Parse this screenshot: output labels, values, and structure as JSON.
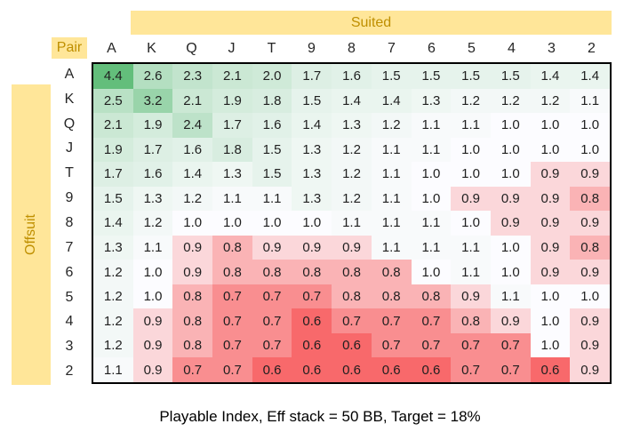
{
  "labels": {
    "suited": "Suited",
    "offsuit": "Offsuit",
    "pair": "Pair"
  },
  "caption": "Playable Index, Eff stack = 50 BB, Target = 18%",
  "colors": {
    "accent_yellow": "#FFE699",
    "gold_text": "#BF8F00",
    "table_border": "#000000"
  },
  "chart_data": {
    "type": "heatmap",
    "title": "Playable Index, Eff stack = 50 BB, Target = 18%",
    "top_group_label": "Suited",
    "left_group_label": "Offsuit",
    "diagonal_label": "Pair",
    "categories": [
      "A",
      "K",
      "Q",
      "J",
      "T",
      "9",
      "8",
      "7",
      "6",
      "5",
      "4",
      "3",
      "2"
    ],
    "rows": [
      {
        "label": "A",
        "values": [
          4.4,
          2.6,
          2.3,
          2.1,
          2.0,
          1.7,
          1.6,
          1.5,
          1.5,
          1.5,
          1.5,
          1.4,
          1.4
        ]
      },
      {
        "label": "K",
        "values": [
          2.5,
          3.2,
          2.1,
          1.9,
          1.8,
          1.5,
          1.4,
          1.4,
          1.3,
          1.2,
          1.2,
          1.2,
          1.1
        ]
      },
      {
        "label": "Q",
        "values": [
          2.1,
          1.9,
          2.4,
          1.7,
          1.6,
          1.4,
          1.3,
          1.2,
          1.1,
          1.1,
          1.0,
          1.0,
          1.0
        ]
      },
      {
        "label": "J",
        "values": [
          1.9,
          1.7,
          1.6,
          1.8,
          1.5,
          1.3,
          1.2,
          1.1,
          1.1,
          1.0,
          1.0,
          1.0,
          1.0
        ]
      },
      {
        "label": "T",
        "values": [
          1.7,
          1.6,
          1.4,
          1.3,
          1.5,
          1.3,
          1.2,
          1.1,
          1.0,
          1.0,
          1.0,
          0.9,
          0.9
        ]
      },
      {
        "label": "9",
        "values": [
          1.5,
          1.3,
          1.2,
          1.1,
          1.1,
          1.3,
          1.2,
          1.1,
          1.0,
          0.9,
          0.9,
          0.9,
          0.8
        ]
      },
      {
        "label": "8",
        "values": [
          1.4,
          1.2,
          1.0,
          1.0,
          1.0,
          1.0,
          1.1,
          1.1,
          1.1,
          1.0,
          0.9,
          0.9,
          0.9
        ]
      },
      {
        "label": "7",
        "values": [
          1.3,
          1.1,
          0.9,
          0.8,
          0.9,
          0.9,
          0.9,
          1.1,
          1.1,
          1.1,
          1.0,
          0.9,
          0.8
        ]
      },
      {
        "label": "6",
        "values": [
          1.2,
          1.0,
          0.9,
          0.8,
          0.8,
          0.8,
          0.8,
          0.8,
          1.0,
          1.1,
          1.0,
          0.9,
          0.9
        ]
      },
      {
        "label": "5",
        "values": [
          1.2,
          1.0,
          0.8,
          0.7,
          0.7,
          0.7,
          0.8,
          0.8,
          0.8,
          0.9,
          1.1,
          1.0,
          1.0
        ]
      },
      {
        "label": "4",
        "values": [
          1.2,
          0.9,
          0.8,
          0.7,
          0.7,
          0.6,
          0.7,
          0.7,
          0.7,
          0.8,
          0.9,
          1.0,
          0.9
        ]
      },
      {
        "label": "3",
        "values": [
          1.2,
          0.9,
          0.8,
          0.7,
          0.7,
          0.6,
          0.6,
          0.7,
          0.7,
          0.7,
          0.7,
          1.0,
          0.9
        ]
      },
      {
        "label": "2",
        "values": [
          1.1,
          0.9,
          0.7,
          0.7,
          0.6,
          0.6,
          0.6,
          0.6,
          0.6,
          0.7,
          0.7,
          0.6,
          0.9
        ]
      }
    ],
    "value_format": "one_decimal",
    "color_scale": {
      "min_value": 0.6,
      "mid_value": 1.0,
      "max_value": 4.4,
      "min_color": "#F8696B",
      "mid_color": "#FCFCFF",
      "max_color": "#63BE7B"
    }
  }
}
